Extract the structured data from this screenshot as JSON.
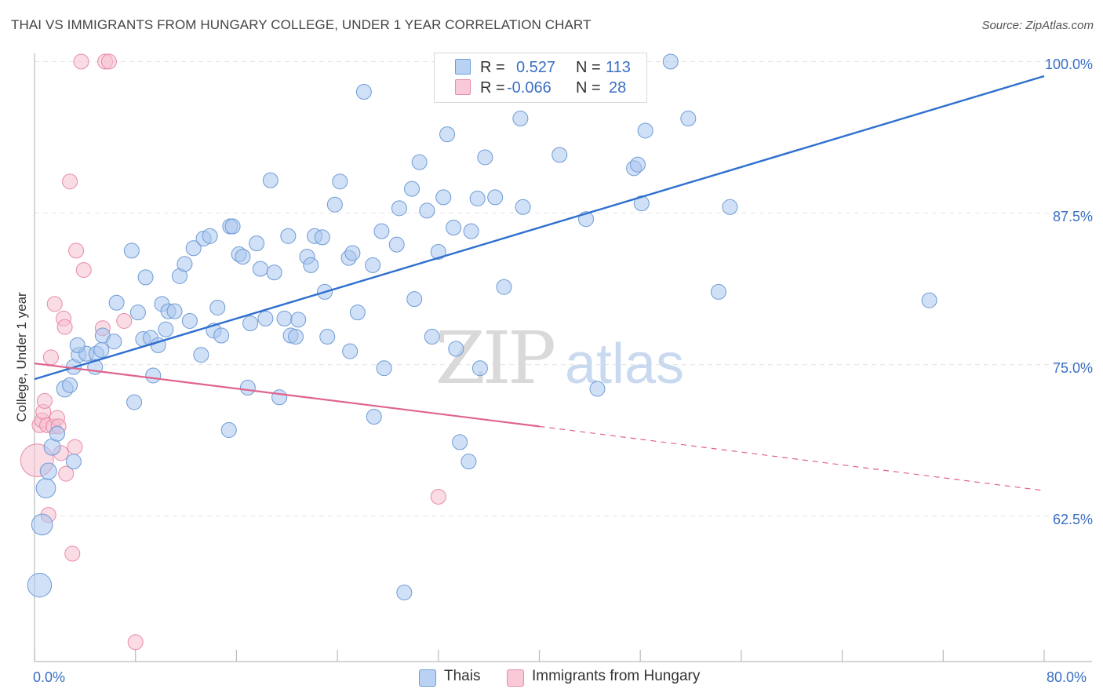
{
  "title": "THAI VS IMMIGRANTS FROM HUNGARY COLLEGE, UNDER 1 YEAR CORRELATION CHART",
  "source": "Source: ZipAtlas.com",
  "watermark": {
    "zip": "ZIP",
    "atlas": "atlas"
  },
  "legend": {
    "thais": {
      "r_label": "R =",
      "r_value": "0.527",
      "n_label": "N =",
      "n_value": "113"
    },
    "hungary": {
      "r_label": "R =",
      "r_value": "-0.066",
      "n_label": "N =",
      "n_value": "28"
    }
  },
  "bottom_legend": {
    "thais": "Thais",
    "hungary": "Immigrants from Hungary"
  },
  "colors": {
    "blue_fill": "#a9c6ee",
    "blue_stroke": "#6f9bd6",
    "blue_line": "#2f6fcf",
    "pink_fill": "#f6bfd0",
    "pink_stroke": "#e98aa8",
    "pink_line": "#e0638c",
    "tick_text": "#3a6fc4",
    "grid": "#e3e3e3"
  },
  "chart_data": {
    "type": "scatter",
    "title": "THAI VS IMMIGRANTS FROM HUNGARY COLLEGE, UNDER 1 YEAR CORRELATION CHART",
    "xlabel": "",
    "ylabel": "College, Under 1 year",
    "xlim": [
      0,
      80
    ],
    "ylim": [
      50.5,
      101
    ],
    "x_tick_labels": [
      "0.0%",
      "80.0%"
    ],
    "y_ticks": [
      62.5,
      75.0,
      87.5,
      100.0
    ],
    "y_tick_labels": [
      "62.5%",
      "75.0%",
      "87.5%",
      "100.0%"
    ],
    "series": [
      {
        "name": "Thais",
        "r": 0.527,
        "n": 113,
        "trend": {
          "x0": 0,
          "y0": 73.8,
          "x1": 80,
          "y1": 98.8
        },
        "points": [
          [
            0.4,
            56.8,
            1.6
          ],
          [
            0.6,
            61.8,
            1.4
          ],
          [
            0.9,
            64.8,
            1.3
          ],
          [
            1.1,
            66.2,
            1.1
          ],
          [
            1.4,
            68.2,
            1.1
          ],
          [
            1.8,
            69.3,
            1.0
          ],
          [
            2.4,
            73.0,
            1.1
          ],
          [
            2.8,
            73.3,
            1.0
          ],
          [
            3.1,
            74.8,
            1.0
          ],
          [
            3.5,
            75.8,
            1.0
          ],
          [
            4.1,
            75.9,
            1.0
          ],
          [
            4.9,
            75.9,
            1.0
          ],
          [
            5.3,
            76.2,
            1.0
          ],
          [
            3.4,
            76.6,
            1.0
          ],
          [
            4.8,
            74.8,
            1.0
          ],
          [
            3.1,
            67.0,
            1.0
          ],
          [
            5.4,
            77.4,
            1.0
          ],
          [
            6.3,
            76.9,
            1.0
          ],
          [
            6.5,
            80.1,
            1.0
          ],
          [
            7.7,
            84.4,
            1.0
          ],
          [
            7.9,
            71.9,
            1.0
          ],
          [
            8.2,
            79.3,
            1.0
          ],
          [
            8.6,
            77.1,
            1.0
          ],
          [
            8.8,
            82.2,
            1.0
          ],
          [
            9.2,
            77.2,
            1.0
          ],
          [
            9.4,
            74.1,
            1.0
          ],
          [
            9.8,
            76.6,
            1.0
          ],
          [
            10.1,
            80.0,
            1.0
          ],
          [
            10.4,
            77.9,
            1.0
          ],
          [
            10.6,
            79.4,
            1.0
          ],
          [
            11.1,
            79.4,
            1.0
          ],
          [
            11.5,
            82.3,
            1.0
          ],
          [
            11.9,
            83.3,
            1.0
          ],
          [
            12.3,
            78.6,
            1.0
          ],
          [
            12.6,
            84.6,
            1.0
          ],
          [
            13.2,
            75.8,
            1.0
          ],
          [
            13.4,
            85.4,
            1.0
          ],
          [
            13.9,
            85.6,
            1.0
          ],
          [
            14.2,
            77.8,
            1.0
          ],
          [
            14.5,
            79.7,
            1.0
          ],
          [
            14.8,
            77.4,
            1.0
          ],
          [
            15.5,
            86.4,
            1.0
          ],
          [
            15.7,
            86.4,
            1.0
          ],
          [
            15.4,
            69.6,
            1.0
          ],
          [
            16.2,
            84.1,
            1.0
          ],
          [
            16.5,
            83.9,
            1.0
          ],
          [
            16.9,
            73.1,
            1.0
          ],
          [
            17.1,
            78.4,
            1.0
          ],
          [
            17.6,
            85.0,
            1.0
          ],
          [
            17.9,
            82.9,
            1.0
          ],
          [
            18.3,
            78.8,
            1.0
          ],
          [
            18.7,
            90.2,
            1.0
          ],
          [
            19.0,
            82.6,
            1.0
          ],
          [
            19.4,
            72.3,
            1.0
          ],
          [
            19.8,
            78.8,
            1.0
          ],
          [
            20.1,
            85.6,
            1.0
          ],
          [
            20.3,
            77.4,
            1.0
          ],
          [
            20.7,
            77.3,
            1.0
          ],
          [
            20.9,
            78.7,
            1.0
          ],
          [
            21.6,
            83.9,
            1.0
          ],
          [
            21.9,
            83.2,
            1.0
          ],
          [
            22.2,
            85.6,
            1.0
          ],
          [
            22.8,
            85.5,
            1.0
          ],
          [
            23.0,
            81.0,
            1.0
          ],
          [
            23.2,
            77.3,
            1.0
          ],
          [
            23.8,
            88.2,
            1.0
          ],
          [
            24.2,
            90.1,
            1.0
          ],
          [
            24.9,
            83.8,
            1.0
          ],
          [
            25.2,
            84.2,
            1.0
          ],
          [
            25.0,
            76.1,
            1.0
          ],
          [
            25.6,
            79.3,
            1.0
          ],
          [
            26.1,
            97.5,
            1.0
          ],
          [
            26.8,
            83.2,
            1.0
          ],
          [
            26.9,
            70.7,
            1.0
          ],
          [
            27.5,
            86.0,
            1.0
          ],
          [
            27.7,
            74.7,
            1.0
          ],
          [
            28.7,
            84.9,
            1.0
          ],
          [
            28.9,
            87.9,
            1.0
          ],
          [
            29.3,
            56.2,
            1.0
          ],
          [
            29.9,
            89.5,
            1.0
          ],
          [
            30.1,
            80.4,
            1.0
          ],
          [
            30.5,
            91.7,
            1.0
          ],
          [
            31.1,
            87.7,
            1.0
          ],
          [
            31.5,
            77.3,
            1.0
          ],
          [
            32.0,
            84.3,
            1.0
          ],
          [
            32.4,
            88.8,
            1.0
          ],
          [
            32.7,
            94.0,
            1.0
          ],
          [
            33.2,
            86.3,
            1.0
          ],
          [
            33.4,
            76.3,
            1.0
          ],
          [
            33.7,
            68.6,
            1.0
          ],
          [
            34.4,
            67.0,
            1.0
          ],
          [
            34.6,
            86.0,
            1.0
          ],
          [
            35.1,
            88.7,
            1.0
          ],
          [
            35.3,
            74.7,
            1.0
          ],
          [
            35.7,
            92.1,
            1.0
          ],
          [
            36.5,
            88.8,
            1.0
          ],
          [
            37.2,
            81.4,
            1.0
          ],
          [
            38.5,
            95.3,
            1.0
          ],
          [
            38.7,
            88.0,
            1.0
          ],
          [
            41.6,
            92.3,
            1.0
          ],
          [
            43.7,
            87.0,
            1.0
          ],
          [
            44.6,
            73.0,
            1.0
          ],
          [
            47.5,
            91.2,
            1.0
          ],
          [
            47.8,
            91.5,
            1.0
          ],
          [
            48.1,
            88.3,
            1.0
          ],
          [
            48.4,
            94.3,
            1.0
          ],
          [
            50.4,
            100.0,
            1.0
          ],
          [
            51.8,
            95.3,
            1.0
          ],
          [
            54.2,
            81.0,
            1.0
          ],
          [
            55.1,
            88.0,
            1.0
          ],
          [
            70.9,
            80.3,
            1.0
          ]
        ]
      },
      {
        "name": "Immigrants from Hungary",
        "r": -0.066,
        "n": 28,
        "trend": {
          "x0": 0,
          "y0": 75.1,
          "x1": 40,
          "y1": 69.9,
          "dash_x1": 80,
          "dash_y1": 64.6
        },
        "points": [
          [
            0.2,
            67.1,
            2.2
          ],
          [
            0.4,
            70.0,
            1.0
          ],
          [
            0.6,
            70.4,
            1.0
          ],
          [
            0.7,
            71.1,
            1.0
          ],
          [
            0.8,
            72.0,
            1.0
          ],
          [
            1.0,
            70.0,
            1.0
          ],
          [
            1.1,
            62.6,
            1.0
          ],
          [
            1.3,
            75.6,
            1.0
          ],
          [
            1.5,
            69.9,
            1.0
          ],
          [
            1.6,
            80.0,
            1.0
          ],
          [
            1.8,
            70.6,
            1.0
          ],
          [
            1.9,
            69.9,
            1.0
          ],
          [
            2.1,
            67.7,
            1.0
          ],
          [
            2.3,
            78.8,
            1.0
          ],
          [
            2.4,
            78.1,
            1.0
          ],
          [
            2.5,
            66.0,
            1.0
          ],
          [
            2.8,
            90.1,
            1.0
          ],
          [
            3.0,
            59.4,
            1.0
          ],
          [
            3.2,
            68.2,
            1.0
          ],
          [
            3.3,
            84.4,
            1.0
          ],
          [
            3.7,
            100.0,
            1.0
          ],
          [
            3.9,
            82.8,
            1.0
          ],
          [
            5.4,
            78.0,
            1.0
          ],
          [
            5.6,
            100.0,
            1.0
          ],
          [
            5.9,
            100.0,
            1.0
          ],
          [
            7.1,
            78.6,
            1.0
          ],
          [
            8.0,
            52.1,
            1.0
          ],
          [
            32.0,
            64.1,
            1.0
          ]
        ]
      }
    ]
  }
}
